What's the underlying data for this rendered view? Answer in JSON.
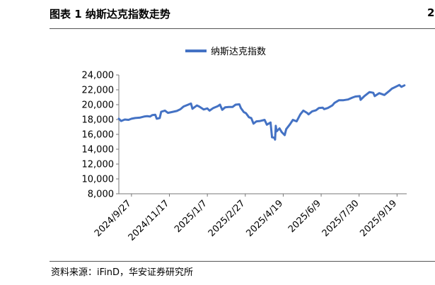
{
  "figure": {
    "title": "图表 1 纳斯达克指数走势",
    "source": "资料来源：iFinD，华安证券研究所",
    "edge_mark": "2"
  },
  "chart_data": {
    "type": "line",
    "title": "",
    "xlabel": "",
    "ylabel": "",
    "legend_position": "top-center",
    "grid": false,
    "ylim": [
      8000,
      24000
    ],
    "xlim": [
      "2024-09-10",
      "2025-10-02"
    ],
    "yticks": [
      8000,
      10000,
      12000,
      14000,
      16000,
      18000,
      20000,
      22000,
      24000
    ],
    "ytick_labels": [
      "8,000",
      "10,000",
      "12,000",
      "14,000",
      "16,000",
      "18,000",
      "20,000",
      "22,000",
      "24,000"
    ],
    "xticks": [
      "2024-09-27",
      "2024-11-17",
      "2025-01-07",
      "2025-02-27",
      "2025-04-19",
      "2025-06-09",
      "2025-07-30",
      "2025-09-19"
    ],
    "xtick_labels": [
      "2024/9/27",
      "2024/11/17",
      "2025/1/7",
      "2025/2/27",
      "2025/4/19",
      "2025/6/9",
      "2025/7/30",
      "2025/9/19"
    ],
    "series": [
      {
        "name": "纳斯达克指数",
        "color": "#4472C4",
        "points": [
          [
            "2024-09-10",
            18100
          ],
          [
            "2024-09-13",
            17800
          ],
          [
            "2024-09-18",
            18000
          ],
          [
            "2024-09-23",
            17950
          ],
          [
            "2024-09-27",
            18100
          ],
          [
            "2024-10-02",
            18200
          ],
          [
            "2024-10-08",
            18250
          ],
          [
            "2024-10-14",
            18400
          ],
          [
            "2024-10-18",
            18450
          ],
          [
            "2024-10-22",
            18400
          ],
          [
            "2024-10-25",
            18600
          ],
          [
            "2024-10-29",
            18650
          ],
          [
            "2024-10-31",
            18100
          ],
          [
            "2024-11-04",
            18200
          ],
          [
            "2024-11-06",
            19050
          ],
          [
            "2024-11-11",
            19200
          ],
          [
            "2024-11-15",
            18900
          ],
          [
            "2024-11-20",
            19000
          ],
          [
            "2024-11-27",
            19150
          ],
          [
            "2024-12-02",
            19400
          ],
          [
            "2024-12-06",
            19750
          ],
          [
            "2024-12-11",
            19950
          ],
          [
            "2024-12-16",
            20150
          ],
          [
            "2024-12-18",
            19450
          ],
          [
            "2024-12-24",
            19900
          ],
          [
            "2024-12-27",
            19750
          ],
          [
            "2025-01-02",
            19350
          ],
          [
            "2025-01-07",
            19500
          ],
          [
            "2025-01-10",
            19200
          ],
          [
            "2025-01-15",
            19550
          ],
          [
            "2025-01-21",
            19800
          ],
          [
            "2025-01-24",
            20000
          ],
          [
            "2025-01-27",
            19300
          ],
          [
            "2025-01-31",
            19650
          ],
          [
            "2025-02-05",
            19700
          ],
          [
            "2025-02-10",
            19700
          ],
          [
            "2025-02-14",
            20000
          ],
          [
            "2025-02-19",
            20050
          ],
          [
            "2025-02-21",
            19550
          ],
          [
            "2025-02-25",
            19000
          ],
          [
            "2025-02-28",
            18850
          ],
          [
            "2025-03-04",
            18300
          ],
          [
            "2025-03-07",
            18200
          ],
          [
            "2025-03-10",
            17450
          ],
          [
            "2025-03-14",
            17750
          ],
          [
            "2025-03-19",
            17800
          ],
          [
            "2025-03-25",
            17950
          ],
          [
            "2025-03-28",
            17300
          ],
          [
            "2025-04-02",
            17600
          ],
          [
            "2025-04-03",
            16550
          ],
          [
            "2025-04-04",
            15600
          ],
          [
            "2025-04-07",
            15550
          ],
          [
            "2025-04-08",
            15300
          ],
          [
            "2025-04-09",
            17150
          ],
          [
            "2025-04-10",
            16400
          ],
          [
            "2025-04-14",
            16800
          ],
          [
            "2025-04-17",
            16300
          ],
          [
            "2025-04-21",
            15900
          ],
          [
            "2025-04-23",
            16700
          ],
          [
            "2025-04-28",
            17350
          ],
          [
            "2025-05-02",
            17950
          ],
          [
            "2025-05-07",
            17750
          ],
          [
            "2025-05-12",
            18700
          ],
          [
            "2025-05-16",
            19200
          ],
          [
            "2025-05-21",
            18900
          ],
          [
            "2025-05-23",
            18700
          ],
          [
            "2025-05-28",
            19100
          ],
          [
            "2025-06-02",
            19250
          ],
          [
            "2025-06-06",
            19550
          ],
          [
            "2025-06-11",
            19600
          ],
          [
            "2025-06-13",
            19400
          ],
          [
            "2025-06-18",
            19550
          ],
          [
            "2025-06-24",
            19900
          ],
          [
            "2025-06-27",
            20250
          ],
          [
            "2025-07-03",
            20600
          ],
          [
            "2025-07-09",
            20600
          ],
          [
            "2025-07-15",
            20700
          ],
          [
            "2025-07-21",
            20950
          ],
          [
            "2025-07-25",
            21100
          ],
          [
            "2025-07-31",
            21150
          ],
          [
            "2025-08-01",
            20650
          ],
          [
            "2025-08-06",
            21150
          ],
          [
            "2025-08-13",
            21700
          ],
          [
            "2025-08-18",
            21600
          ],
          [
            "2025-08-20",
            21150
          ],
          [
            "2025-08-26",
            21550
          ],
          [
            "2025-09-02",
            21300
          ],
          [
            "2025-09-08",
            21800
          ],
          [
            "2025-09-12",
            22150
          ],
          [
            "2025-09-18",
            22450
          ],
          [
            "2025-09-22",
            22650
          ],
          [
            "2025-09-25",
            22400
          ],
          [
            "2025-09-29",
            22600
          ]
        ]
      }
    ]
  }
}
